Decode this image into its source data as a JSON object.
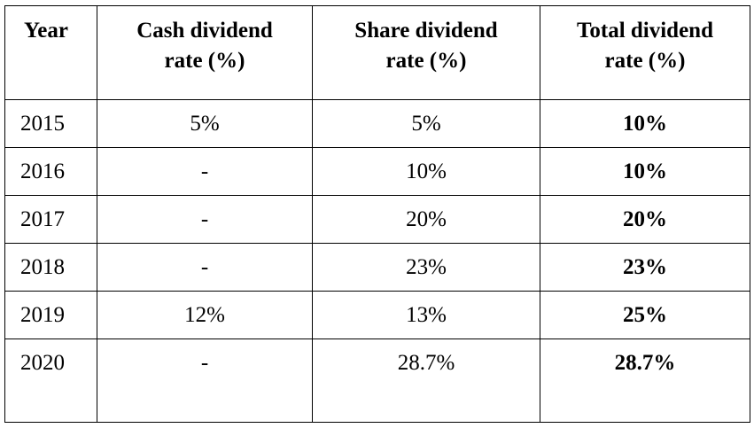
{
  "table": {
    "headers": {
      "year": "Year",
      "cash": "Cash dividend\nrate (%)",
      "share": "Share dividend\nrate (%)",
      "total": "Total dividend\nrate (%)"
    },
    "rows": [
      {
        "year": "2015",
        "cash": "5%",
        "share": "5%",
        "total": "10%"
      },
      {
        "year": "2016",
        "cash": "-",
        "share": "10%",
        "total": "10%"
      },
      {
        "year": "2017",
        "cash": "-",
        "share": "20%",
        "total": "20%"
      },
      {
        "year": "2018",
        "cash": "-",
        "share": "23%",
        "total": "23%"
      },
      {
        "year": "2019",
        "cash": "12%",
        "share": "13%",
        "total": "25%"
      },
      {
        "year": "2020",
        "cash": "-",
        "share": "28.7%",
        "total": "28.7%"
      }
    ]
  }
}
